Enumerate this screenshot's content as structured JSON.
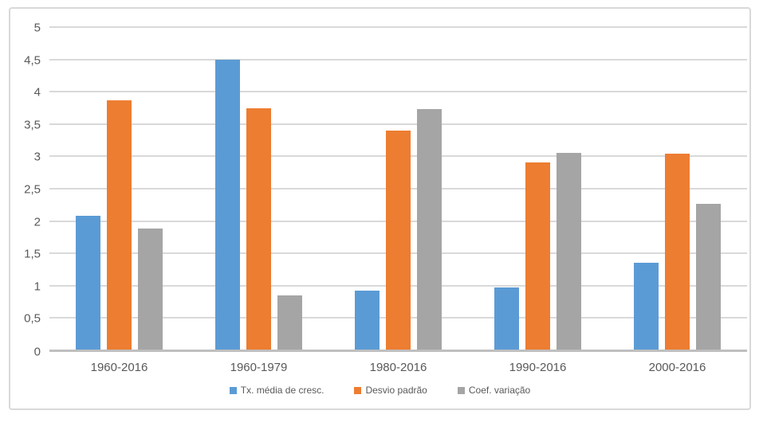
{
  "chart_data": {
    "type": "bar",
    "title": "",
    "xlabel": "",
    "ylabel": "",
    "categories": [
      "1960-2016",
      "1960-1979",
      "1980-2016",
      "1990-2016",
      "2000-2016"
    ],
    "series": [
      {
        "name": "Tx. média de cresc.",
        "color": "#5B9BD5",
        "values": [
          2.07,
          4.48,
          0.91,
          0.96,
          1.34
        ]
      },
      {
        "name": "Desvio padrão",
        "color": "#ED7D31",
        "values": [
          3.86,
          3.73,
          3.39,
          2.9,
          3.03
        ]
      },
      {
        "name": "Coef. variação",
        "color": "#A5A5A5",
        "values": [
          1.87,
          0.84,
          3.72,
          3.04,
          2.25
        ]
      }
    ],
    "ylim": [
      0,
      5
    ],
    "ytick_step": 0.5,
    "yticks": [
      "0",
      "0,5",
      "1",
      "1,5",
      "2",
      "2,5",
      "3",
      "3,5",
      "4",
      "4,5",
      "5"
    ],
    "grid": true,
    "legend_position": "bottom"
  },
  "colors": {
    "background": "#FFFFFF",
    "frame_border": "#D9D9D9",
    "gridline": "#D9D9D9",
    "axis_line": "#BFBFBF",
    "label_text": "#595959"
  }
}
